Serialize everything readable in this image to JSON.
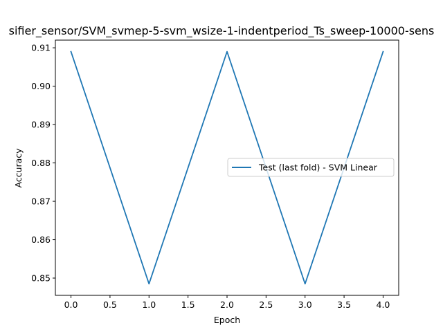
{
  "chart_data": {
    "type": "line",
    "title": "sifier_sensor/SVM_svmep-5-svm_wsize-1-indentperiod_Ts_sweep-10000-sens",
    "xlabel": "Epoch",
    "ylabel": "Accuracy",
    "xlim": [
      -0.2,
      4.2
    ],
    "ylim": [
      0.8455,
      0.912
    ],
    "x_ticks": [
      0.0,
      0.5,
      1.0,
      1.5,
      2.0,
      2.5,
      3.0,
      3.5,
      4.0
    ],
    "x_tick_labels": [
      "0.0",
      "0.5",
      "1.0",
      "1.5",
      "2.0",
      "2.5",
      "3.0",
      "3.5",
      "4.0"
    ],
    "y_ticks": [
      0.85,
      0.86,
      0.87,
      0.88,
      0.89,
      0.9,
      0.91
    ],
    "y_tick_labels": [
      "0.85",
      "0.86",
      "0.87",
      "0.88",
      "0.89",
      "0.90",
      "0.91"
    ],
    "grid": false,
    "legend_position": "center-right",
    "series": [
      {
        "name": "Test (last fold) - SVM Linear",
        "color": "#1f77b4",
        "x": [
          0,
          1,
          2,
          3,
          4
        ],
        "y": [
          0.909,
          0.8485,
          0.909,
          0.8485,
          0.909
        ]
      }
    ]
  }
}
